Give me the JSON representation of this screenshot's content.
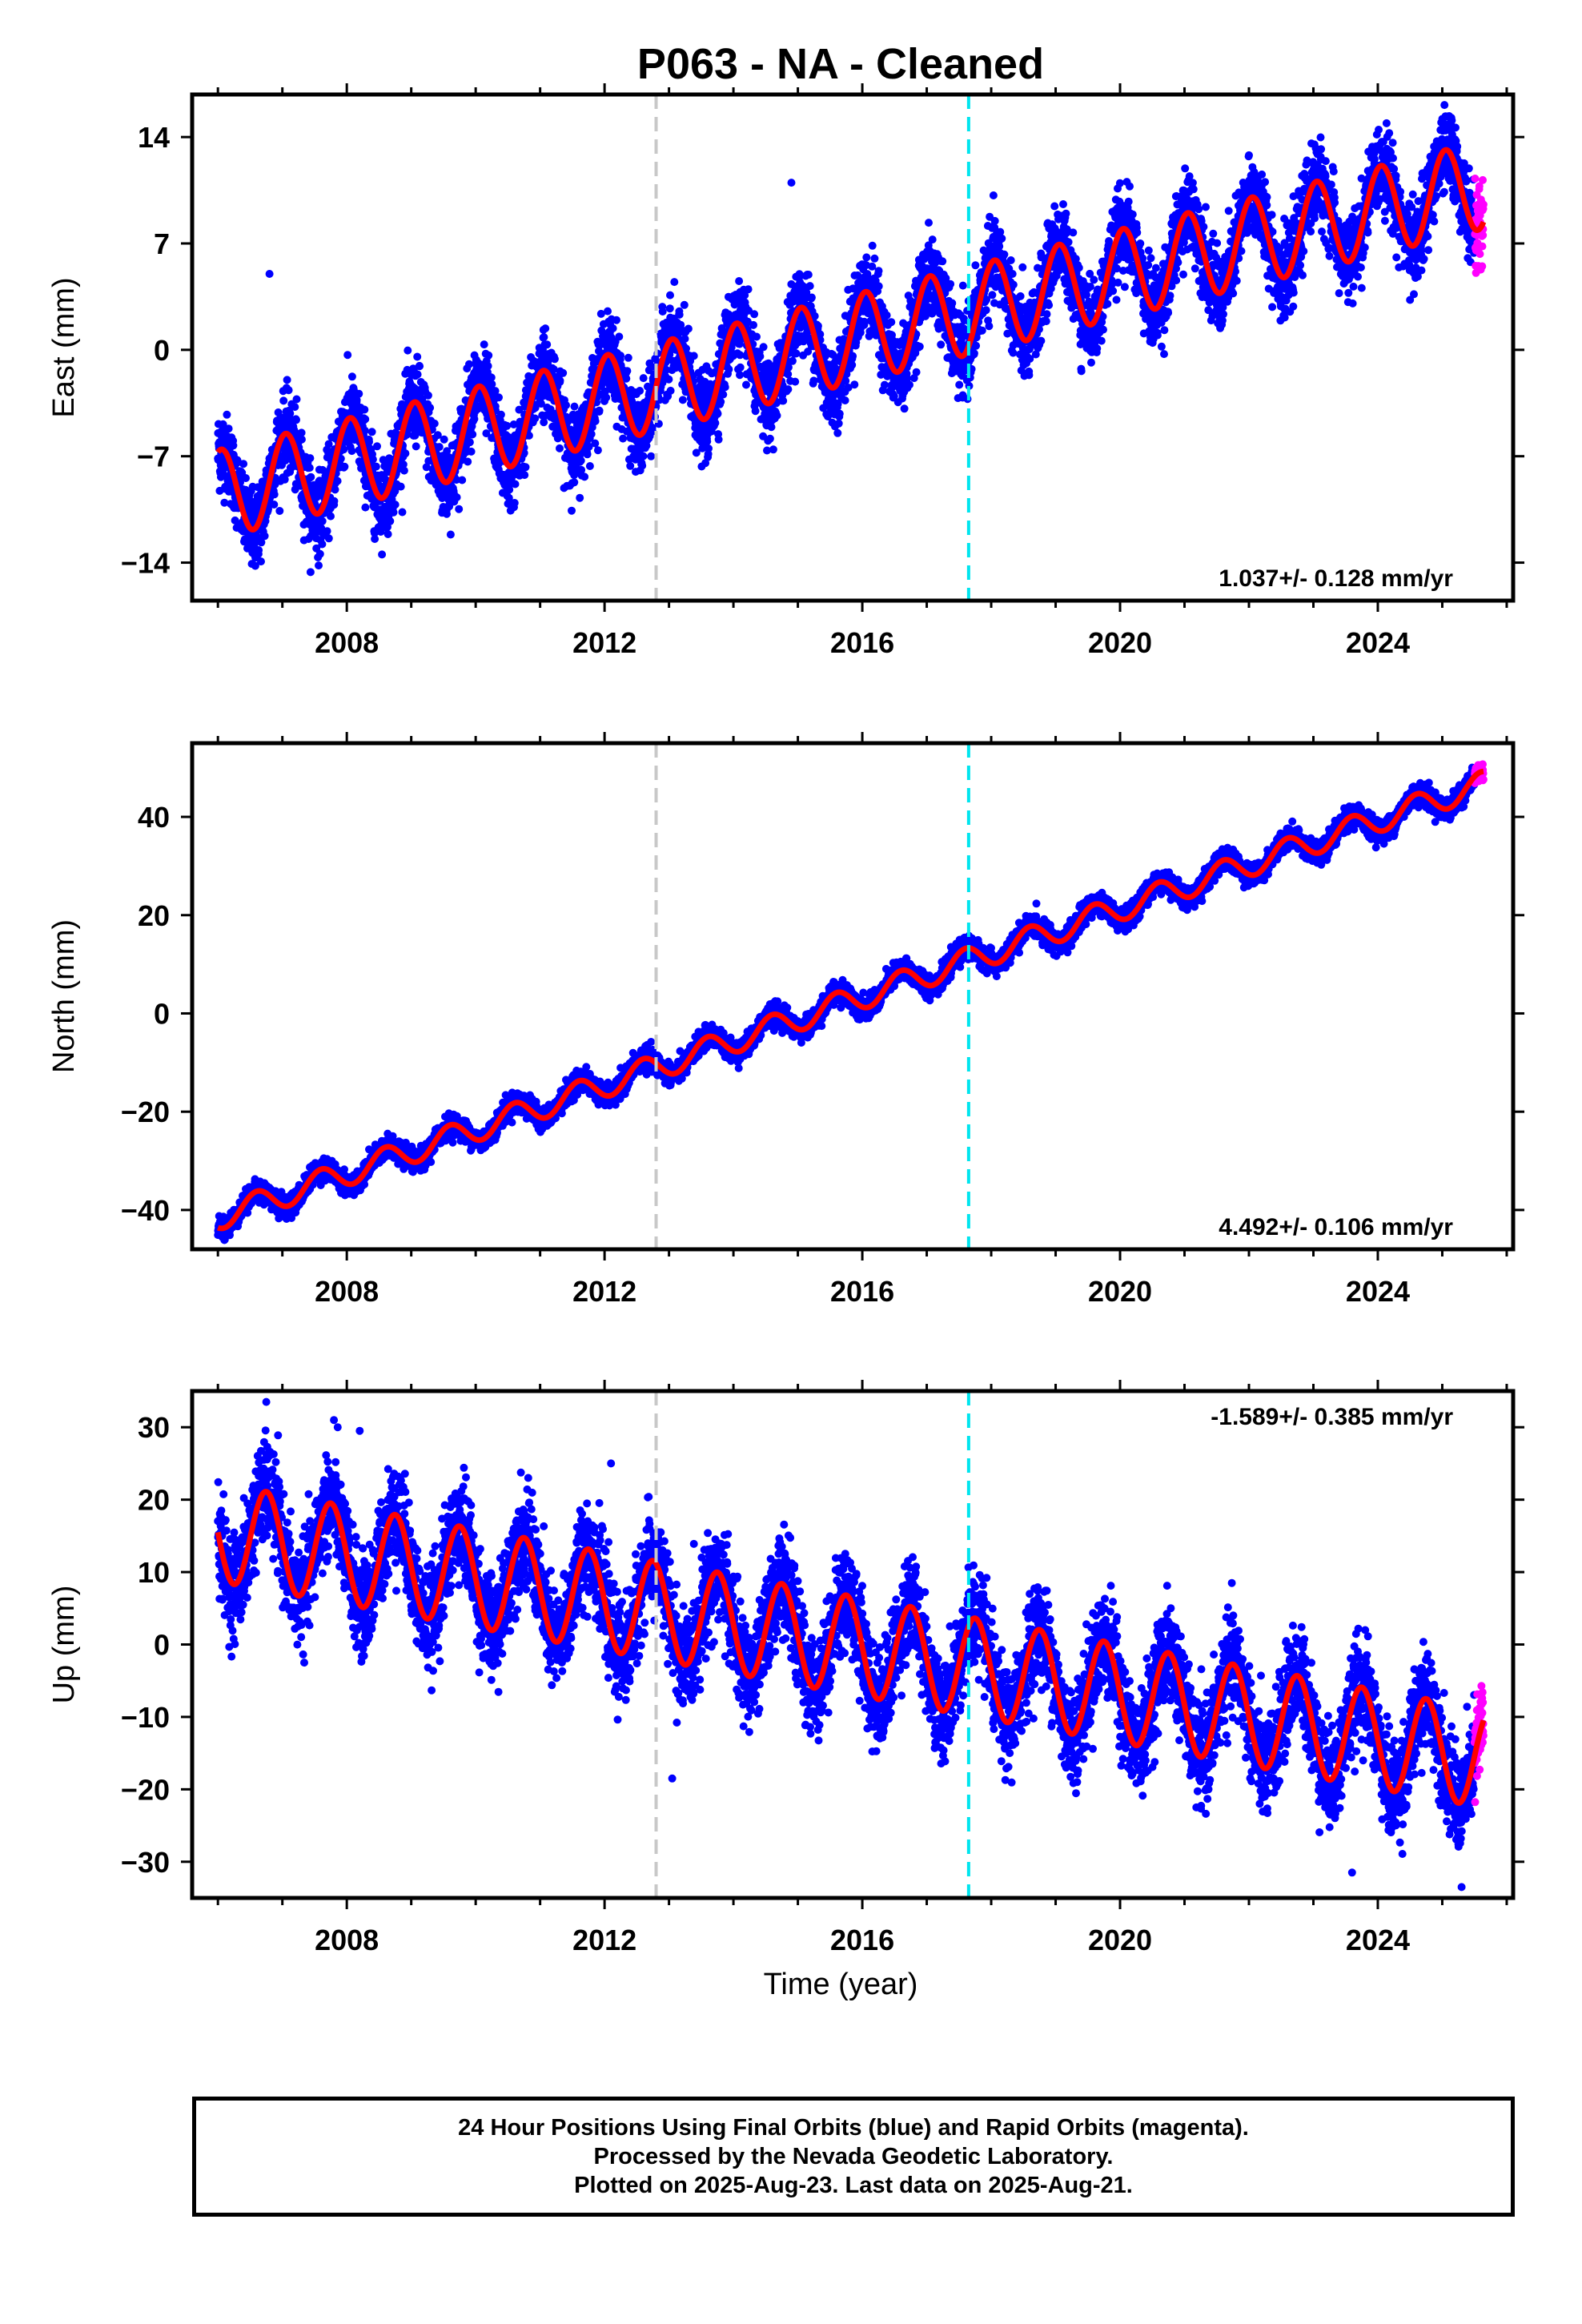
{
  "figure": {
    "title": "P063  - NA - Cleaned",
    "xlabel": "Time (year)"
  },
  "colors": {
    "final_orbits": "#0000ff",
    "rapid_orbits": "#ff00ff",
    "model": "#ff0000",
    "antenna_change": "#c8c8c8",
    "equipment_change": "#00e5ee"
  },
  "footer": {
    "line1": "24 Hour Positions Using Final Orbits (blue) and Rapid Orbits (magenta).",
    "line2": "Processed by the Nevada Geodetic Laboratory.",
    "line3": "Plotted on 2025-Aug-23. Last data on 2025-Aug-21."
  },
  "chart_data": [
    {
      "type": "scatter",
      "component": "east",
      "ylabel": "East (mm)",
      "xlim": [
        2005.6,
        2026.1
      ],
      "ylim": [
        -16.5,
        16.8
      ],
      "yticks": [
        -14,
        -7,
        0,
        7,
        14
      ],
      "xticks": [
        2008,
        2012,
        2016,
        2020,
        2024
      ],
      "rate_label": "1.037+/- 0.128 mm/yr",
      "rate_position": "bottom-right",
      "vlines": [
        2012.8,
        2017.65
      ],
      "data_start": 2006.0,
      "data_end": 2025.64,
      "rapid_start": 2025.5,
      "model": {
        "intercept_2006": -9.5,
        "trend": 1.037,
        "amplitude": 2.9,
        "phase_peak": 0.05,
        "scatter": 1.3
      },
      "outliers": [
        [
          2006.8,
          5.0
        ],
        [
          2014.9,
          11.0
        ],
        [
          2019.4,
          -1.4
        ]
      ]
    },
    {
      "type": "scatter",
      "component": "north",
      "ylabel": "North (mm)",
      "xlim": [
        2005.6,
        2026.1
      ],
      "ylim": [
        -48,
        55
      ],
      "yticks": [
        -40,
        -20,
        0,
        20,
        40
      ],
      "xticks": [
        2008,
        2012,
        2016,
        2020,
        2024
      ],
      "rate_label": "4.492+/- 0.106 mm/yr",
      "rate_position": "bottom-right",
      "vlines": [
        2012.8,
        2017.65
      ],
      "data_start": 2006.0,
      "data_end": 2025.64,
      "rapid_start": 2025.5,
      "model": {
        "intercept_2006": -41.5,
        "trend": 4.492,
        "amplitude": 2.6,
        "phase_peak": 0.6,
        "scatter": 1.1
      },
      "outliers": []
    },
    {
      "type": "scatter",
      "component": "up",
      "ylabel": "Up (mm)",
      "xlim": [
        2005.6,
        2026.1
      ],
      "ylim": [
        -35,
        35
      ],
      "yticks": [
        -30,
        -20,
        -10,
        0,
        10,
        20,
        30
      ],
      "xticks": [
        2008,
        2012,
        2016,
        2020,
        2024
      ],
      "rate_label": "-1.589+/- 0.385 mm/yr",
      "rate_position": "top-right",
      "vlines": [
        2012.8,
        2017.65
      ],
      "data_start": 2006.0,
      "data_end": 2025.64,
      "rapid_start": 2025.5,
      "model": {
        "intercept_2006": 15.5,
        "trend": -1.589,
        "amplitude": 6.8,
        "phase_peak": 0.75,
        "scatter": 3.4
      },
      "outliers": [
        [
          2006.75,
          33.5
        ],
        [
          2007.8,
          31.0
        ],
        [
          2008.2,
          29.5
        ],
        [
          2012.1,
          25.0
        ],
        [
          2013.05,
          -18.5
        ],
        [
          2023.6,
          -31.5
        ],
        [
          2025.3,
          -33.5
        ]
      ]
    }
  ]
}
